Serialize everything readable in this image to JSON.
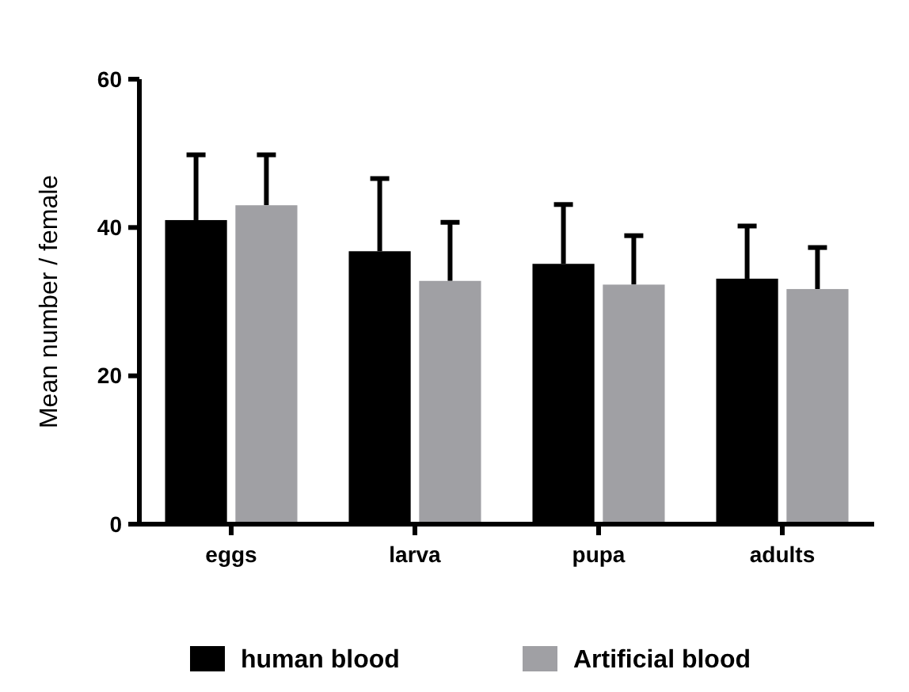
{
  "chart_data": {
    "type": "bar",
    "ylabel": "Mean number / female",
    "categories": [
      "eggs",
      "larva",
      "pupa",
      "adults"
    ],
    "series": [
      {
        "name": "human blood",
        "color": "#000000",
        "values": [
          41.0,
          36.8,
          35.1,
          33.1
        ],
        "errors": [
          8.8,
          9.8,
          8.0,
          7.1
        ]
      },
      {
        "name": "Artificial blood",
        "color": "#a0a0a4",
        "values": [
          43.0,
          32.8,
          32.3,
          31.7
        ],
        "errors": [
          6.8,
          7.9,
          6.6,
          5.6
        ]
      }
    ],
    "ylim": [
      0,
      60
    ],
    "yticks": [
      0,
      20,
      40,
      60
    ],
    "legend": "bottom"
  }
}
